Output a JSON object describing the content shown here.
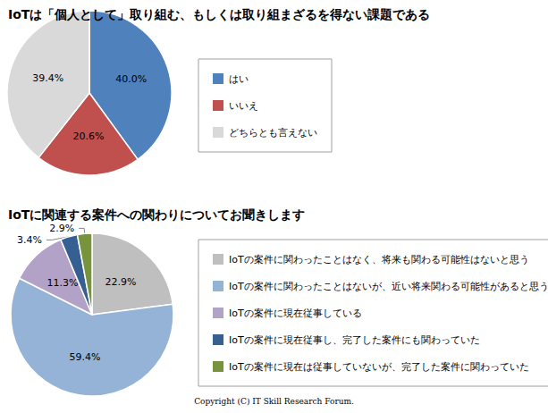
{
  "chart_data": [
    {
      "type": "pie",
      "title": "IoTは「個人として」取り組む、もしくは取り組まざるを得ない課題である",
      "categories": [
        "はい",
        "いいえ",
        "どちらとも言えない"
      ],
      "values": [
        40.0,
        20.6,
        39.4
      ],
      "value_labels": [
        "40.0%",
        "20.6%",
        "39.4%"
      ],
      "colors": [
        "#4f81bd",
        "#c0504d",
        "#d9d9d9"
      ],
      "data_labels": true,
      "legend": "right"
    },
    {
      "type": "pie",
      "title": "IoTに関連する案件への関わりについてお聞きします",
      "categories": [
        "IoTの案件に関わったことはなく、将来も関わる可能性はないと思う",
        "IoTの案件に関わったことはないが、近い将来関わる可能性があると思う",
        "IoTの案件に現在従事している",
        "IoTの案件に現在従事し、完了した案件にも関わっていた",
        "IoTの案件に現在は従事していないが、完了した案件に関わっていた"
      ],
      "values": [
        22.9,
        59.4,
        11.3,
        3.4,
        2.9
      ],
      "value_labels": [
        "22.9%",
        "59.4%",
        "11.3%",
        "3.4%",
        "2.9%"
      ],
      "colors": [
        "#bfbfbf",
        "#95b3d7",
        "#b3a2c7",
        "#376092",
        "#77933c"
      ],
      "data_labels": true,
      "legend": "right",
      "annotations": [
        "Copyright (C) IT Skill Research Forum."
      ]
    }
  ]
}
